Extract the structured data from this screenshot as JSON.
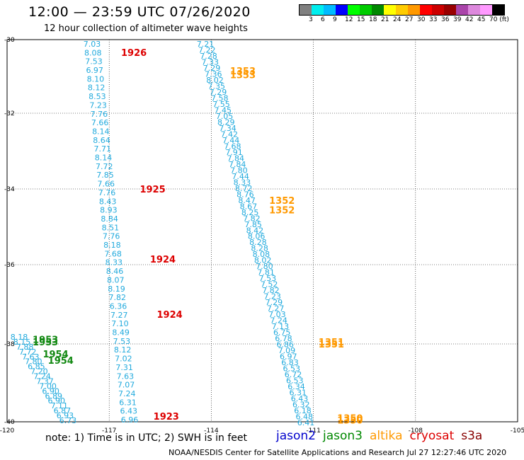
{
  "header": {
    "title": "12:00 — 23:59 UTC 07/26/2020",
    "subtitle": "12 hour collection of altimeter wave heights"
  },
  "legend": {
    "colors": [
      "#808080",
      "#00eeee",
      "#00bbff",
      "#0000ff",
      "#00ff00",
      "#00cc00",
      "#008800",
      "#ffff00",
      "#ffcc00",
      "#ff9900",
      "#ff0000",
      "#cc0000",
      "#990000",
      "#aa44aa",
      "#dd88dd",
      "#ff99ff",
      "#000000"
    ],
    "labels": [
      "3",
      "6",
      "9",
      "12",
      "15",
      "18",
      "21",
      "24",
      "27",
      "30",
      "33",
      "36",
      "39",
      "42",
      "45",
      "70 (ft)"
    ]
  },
  "map": {
    "lon_range": [
      -120,
      -105
    ],
    "lat_range": [
      -40,
      -30
    ],
    "lon_ticks": [
      "-120",
      "-117",
      "-114",
      "-111",
      "-108",
      "-105"
    ],
    "lat_ticks": [
      "-30",
      "-32",
      "-34",
      "-36",
      "-38",
      "-40"
    ],
    "tracks": [
      {
        "name": "track-1926-1923",
        "color": "#22aadd",
        "values": [
          "7.03",
          "8.08",
          "7.53",
          "6.97",
          "8.10",
          "8.12",
          "8.53",
          "7.23",
          "7.76",
          "7.66",
          "8.14",
          "8.64",
          "7.71",
          "8.14",
          "7.72",
          "7.85",
          "7.66",
          "7.76",
          "8.43",
          "8.93",
          "8.84",
          "8.51",
          "7.76",
          "8.18",
          "7.68",
          "8.33",
          "8.46",
          "8.07",
          "8.19",
          "7.82",
          "6.36",
          "7.27",
          "7.10",
          "8.49",
          "7.53",
          "8.12",
          "7.02",
          "7.31",
          "7.63",
          "7.07",
          "7.24",
          "6.31",
          "6.43",
          "6.96"
        ]
      },
      {
        "name": "track-1353-1350",
        "color": "#22aadd",
        "values": [
          "7.21",
          "7.22",
          "7.28",
          "7.33",
          "7.29",
          "7.36",
          "8.02",
          "7.35",
          "7.29",
          "7.58",
          "7.55",
          "7.45",
          "7.05",
          "8.29",
          "7.34",
          "7.42",
          "7.44",
          "7.68",
          "7.91",
          "7.84",
          "7.84",
          "7.80",
          "7.44",
          "8.33",
          "8.72",
          "8.76",
          "8.47",
          "8.67",
          "8.25",
          "7.82",
          "7.85",
          "8.42",
          "8.06",
          "8.28",
          "8.28",
          "8.08",
          "8.02",
          "7.80",
          "7.81",
          "7.53",
          "7.52",
          "7.82",
          "7.23",
          "7.29",
          "7.27",
          "7.03",
          "7.24",
          "7.13",
          "6.75",
          "6.78",
          "6.86",
          "7.09",
          "6.97",
          "6.83",
          "6.53",
          "6.72",
          "6.53",
          "6.34",
          "6.31",
          "6.43",
          "6.32",
          "6.18",
          "6.48",
          "6.41"
        ]
      },
      {
        "name": "track-1953-1954",
        "color": "#22aadd",
        "values": [
          "8.18",
          "8.15",
          "7.88",
          "7.72",
          "7.63",
          "7.80",
          "6.85",
          "7.20",
          "7.24",
          "7.37",
          "7.00",
          "6.90",
          "6.89",
          "6.90",
          "7.11",
          "6.87",
          "6.93",
          "6.73"
        ]
      }
    ],
    "time_labels": [
      {
        "text": "1926",
        "color": "#dd0000",
        "lon": -116.65,
        "lat": -30.35
      },
      {
        "text": "1925",
        "color": "#dd0000",
        "lon": -116.1,
        "lat": -34.0
      },
      {
        "text": "1924",
        "color": "#dd0000",
        "lon": -115.8,
        "lat": -35.85
      },
      {
        "text": "1924",
        "color": "#dd0000",
        "lon": -115.6,
        "lat": -37.25
      },
      {
        "text": "1923",
        "color": "#dd0000",
        "lon": -115.7,
        "lat": -39.85
      },
      {
        "text": "1353",
        "color": "#ff9900",
        "lon": -113.45,
        "lat": -30.85
      },
      {
        "text": "1353",
        "color": "#ff9900",
        "lon": -113.45,
        "lat": -30.95
      },
      {
        "text": "1352",
        "color": "#ff9900",
        "lon": -112.3,
        "lat": -34.3
      },
      {
        "text": "1352",
        "color": "#ff9900",
        "lon": -112.3,
        "lat": -34.55
      },
      {
        "text": "1351",
        "color": "#ff9900",
        "lon": -110.85,
        "lat": -37.95
      },
      {
        "text": "1351",
        "color": "#ff9900",
        "lon": -110.85,
        "lat": -38.0
      },
      {
        "text": "1350",
        "color": "#ff9900",
        "lon": -110.3,
        "lat": -39.9
      },
      {
        "text": "1350",
        "color": "#ff9900",
        "lon": -110.3,
        "lat": -39.95
      },
      {
        "text": "1953",
        "color": "#118811",
        "lon": -119.25,
        "lat": -37.88
      },
      {
        "text": "1953",
        "color": "#118811",
        "lon": -119.25,
        "lat": -37.95
      },
      {
        "text": "1954",
        "color": "#118811",
        "lon": -118.95,
        "lat": -38.25
      },
      {
        "text": "1954",
        "color": "#118811",
        "lon": -118.8,
        "lat": -38.42
      }
    ]
  },
  "footer": {
    "note": "note:  1) Time is in UTC;  2) SWH is in feet",
    "satellites": [
      {
        "name": "jason2",
        "color": "#0000cc"
      },
      {
        "name": "jason3",
        "color": "#008800"
      },
      {
        "name": "altika",
        "color": "#ff9900"
      },
      {
        "name": "cryosat",
        "color": "#dd0000"
      },
      {
        "name": "s3a",
        "color": "#880000"
      }
    ],
    "credit": "NOAA/NESDIS Center for Satellite Applications and Research    Jul 27 12:27:46 UTC 2020"
  }
}
